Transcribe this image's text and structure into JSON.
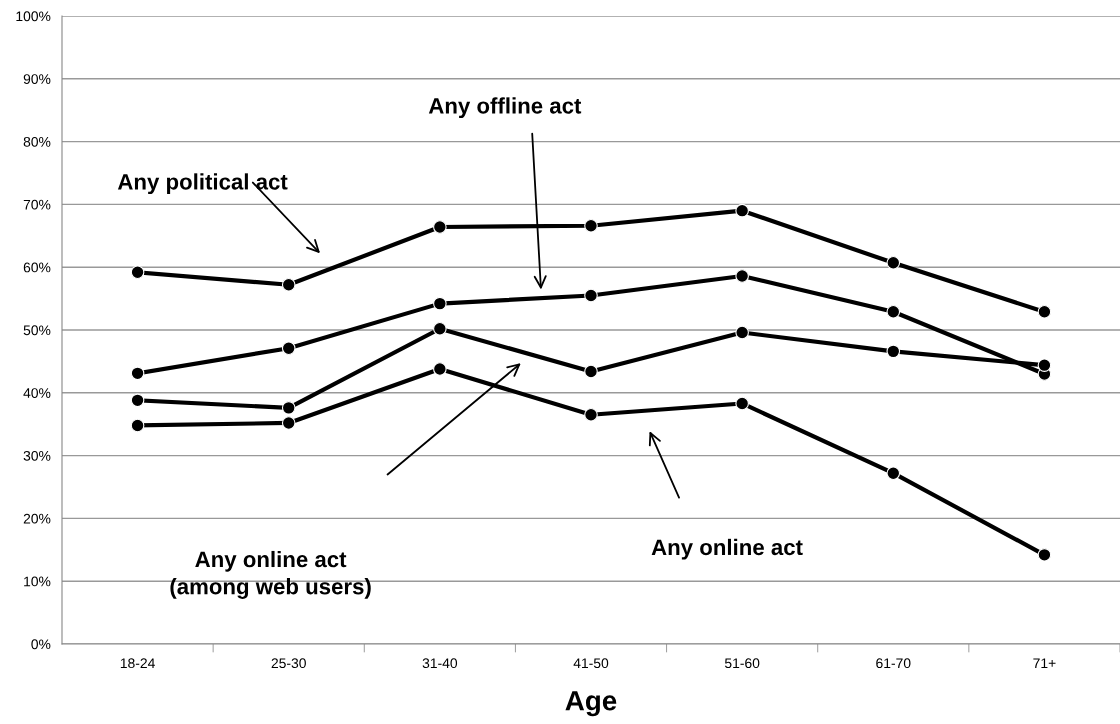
{
  "chart_data": {
    "type": "line",
    "xlabel": "Age",
    "categories": [
      "18-24",
      "25-30",
      "31-40",
      "41-50",
      "51-60",
      "61-70",
      "71+"
    ],
    "series": [
      {
        "color": "#000000",
        "values": [
          59.2,
          57.2,
          66.4,
          66.6,
          69.0,
          60.7,
          52.9
        ]
      },
      {
        "color": "#000000",
        "values": [
          43.1,
          47.1,
          54.2,
          55.5,
          58.6,
          52.9,
          43.0
        ]
      },
      {
        "color": "#000000",
        "values": [
          38.8,
          37.6,
          50.2,
          43.4,
          49.6,
          46.6,
          44.4
        ]
      },
      {
        "color": "#000000",
        "values": [
          34.8,
          35.2,
          43.8,
          36.5,
          38.3,
          27.2,
          14.2
        ]
      }
    ],
    "annotations": [
      "Any political act",
      "Any offline act",
      "Any online act\n(among web users)",
      "Any online act"
    ],
    "ylim": [
      0,
      100
    ],
    "yticks": [
      {
        "value": 0,
        "label": "0%"
      },
      {
        "value": 10,
        "label": "10%"
      },
      {
        "value": 20,
        "label": "20%"
      },
      {
        "value": 30,
        "label": "30%"
      },
      {
        "value": 40,
        "label": "40%"
      },
      {
        "value": 50,
        "label": "50%"
      },
      {
        "value": 60,
        "label": "60%"
      },
      {
        "value": 70,
        "label": "70%"
      },
      {
        "value": 80,
        "label": "80%"
      },
      {
        "value": 90,
        "label": "90%"
      },
      {
        "value": 100,
        "label": "100%"
      }
    ],
    "grid": "y",
    "marker": "circle",
    "line_style": "solid",
    "legend": false
  }
}
